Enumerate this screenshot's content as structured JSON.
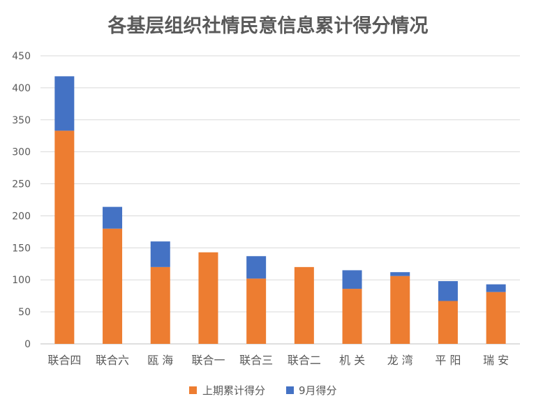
{
  "chart_data": {
    "type": "bar",
    "stacked": true,
    "title": "各基层组织社情民意信息累计得分情况",
    "categories": [
      "联合四",
      "联合六",
      "瓯 海",
      "联合一",
      "联合三",
      "联合二",
      "机 关",
      "龙 湾",
      "平 阳",
      "瑞 安"
    ],
    "series": [
      {
        "name": "上期累计得分",
        "color": "#ED7D31",
        "values": [
          333,
          180,
          120,
          143,
          102,
          120,
          86,
          106,
          67,
          81
        ]
      },
      {
        "name": "9月得分",
        "color": "#4472C4",
        "values": [
          85,
          34,
          40,
          0,
          35,
          0,
          29,
          6,
          31,
          12
        ]
      }
    ],
    "ylim": [
      0,
      450
    ],
    "yticks": [
      0,
      50,
      100,
      150,
      200,
      250,
      300,
      350,
      400,
      450
    ],
    "grid": true,
    "legend": "bottom",
    "xlabel": "",
    "ylabel": ""
  }
}
